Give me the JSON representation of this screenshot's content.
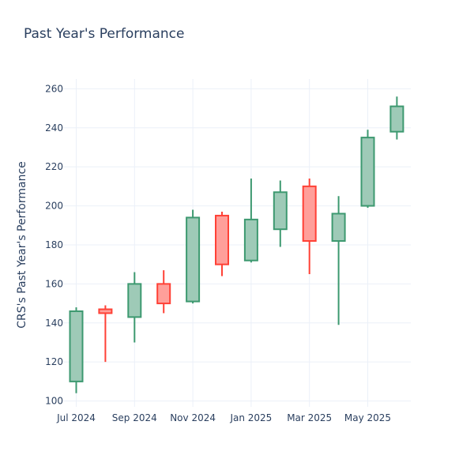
{
  "chart_data": {
    "type": "candlestick",
    "title": "Past Year's Performance",
    "xlabel": "",
    "ylabel": "CRS's Past Year's Performance",
    "ylim": [
      97,
      265
    ],
    "y_ticks": [
      100,
      120,
      140,
      160,
      180,
      200,
      220,
      240,
      260
    ],
    "x_ticks": [
      {
        "label": "Jul 2024",
        "index": 0
      },
      {
        "label": "Sep 2024",
        "index": 2
      },
      {
        "label": "Nov 2024",
        "index": 4
      },
      {
        "label": "Jan 2025",
        "index": 6
      },
      {
        "label": "Mar 2025",
        "index": 8
      },
      {
        "label": "May 2025",
        "index": 10
      }
    ],
    "grid": true,
    "increasing_color": "#3d9970",
    "increasing_fill": "#9ecab7",
    "decreasing_color": "#ff4136",
    "decreasing_fill": "#ff9f9a",
    "candles": [
      {
        "month": "2024-07",
        "open": 110,
        "high": 148,
        "low": 104,
        "close": 146
      },
      {
        "month": "2024-08",
        "open": 147,
        "high": 149,
        "low": 120,
        "close": 145
      },
      {
        "month": "2024-09",
        "open": 143,
        "high": 166,
        "low": 130,
        "close": 160
      },
      {
        "month": "2024-10",
        "open": 160,
        "high": 167,
        "low": 145,
        "close": 150
      },
      {
        "month": "2024-11",
        "open": 151,
        "high": 198,
        "low": 150,
        "close": 194
      },
      {
        "month": "2024-12",
        "open": 195,
        "high": 197,
        "low": 164,
        "close": 170
      },
      {
        "month": "2025-01",
        "open": 172,
        "high": 214,
        "low": 171,
        "close": 193
      },
      {
        "month": "2025-02",
        "open": 188,
        "high": 213,
        "low": 179,
        "close": 207
      },
      {
        "month": "2025-03",
        "open": 210,
        "high": 214,
        "low": 165,
        "close": 182
      },
      {
        "month": "2025-04",
        "open": 182,
        "high": 205,
        "low": 139,
        "close": 196
      },
      {
        "month": "2025-05",
        "open": 200,
        "high": 239,
        "low": 199,
        "close": 235
      },
      {
        "month": "2025-06",
        "open": 238,
        "high": 256,
        "low": 234,
        "close": 251
      }
    ]
  }
}
